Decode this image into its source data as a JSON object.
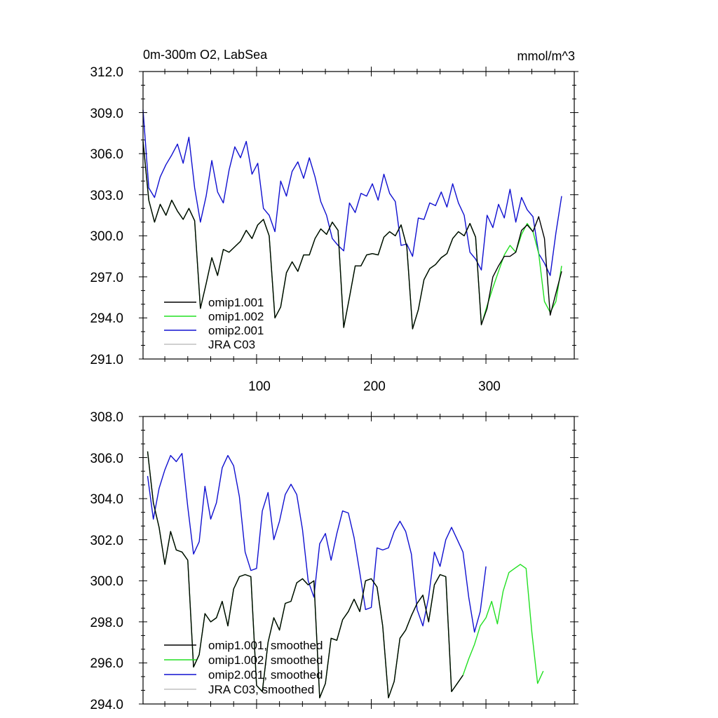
{
  "colors": {
    "omip1_001": "#000000",
    "omip1_002": "#22e022",
    "omip2_001": "#1010d0",
    "jra_c03": "#c0c0c0"
  },
  "chart_data": [
    {
      "type": "line",
      "title": "0m-300m O2, LabSea",
      "units": "mmol/m^3",
      "xlim": [
        1,
        377
      ],
      "ylim": [
        291,
        312
      ],
      "yticks": [
        "312.0",
        "309.0",
        "306.0",
        "303.0",
        "300.0",
        "297.0",
        "294.0",
        "291.0"
      ],
      "xticks": [
        "100",
        "200",
        "300"
      ],
      "legend_position": "bottom-left",
      "series": [
        {
          "name": "omip1.001",
          "color": "#000000",
          "x_start": 1,
          "x_step": 5,
          "values": [
            306.9,
            302.6,
            301.0,
            302.3,
            301.5,
            302.6,
            301.8,
            301.2,
            302.0,
            301.1,
            294.7,
            296.5,
            298.4,
            297.1,
            299.0,
            298.8,
            299.2,
            299.6,
            300.4,
            299.8,
            300.8,
            301.2,
            300.0,
            294.0,
            294.8,
            297.3,
            298.1,
            297.4,
            298.6,
            298.6,
            299.8,
            300.5,
            300.1,
            301.0,
            300.4,
            293.3,
            295.5,
            297.8,
            297.8,
            298.6,
            298.7,
            298.6,
            299.9,
            300.3,
            300.0,
            300.8,
            299.2,
            293.2,
            294.6,
            296.8,
            297.6,
            297.9,
            298.4,
            298.7,
            299.8,
            300.3,
            300.0,
            300.9,
            299.9,
            293.5,
            294.7,
            297.0,
            297.8,
            298.5,
            298.5,
            298.8,
            300.4,
            300.8,
            300.3,
            301.4,
            299.8,
            294.2,
            295.8,
            297.4
          ]
        },
        {
          "name": "omip1.002",
          "color": "#22e022",
          "x_start": 1,
          "x_step": 5,
          "values": [
            306.9,
            302.6,
            301.0,
            302.3,
            301.5,
            302.6,
            301.8,
            301.2,
            302.0,
            301.1,
            294.7,
            296.5,
            298.4,
            297.1,
            299.0,
            298.8,
            299.2,
            299.6,
            300.4,
            299.8,
            300.8,
            301.2,
            300.0,
            294.0,
            294.8,
            297.3,
            298.1,
            297.4,
            298.6,
            298.6,
            299.8,
            300.5,
            300.1,
            301.0,
            300.4,
            293.3,
            295.5,
            297.8,
            297.8,
            298.6,
            298.7,
            298.6,
            299.9,
            300.3,
            300.0,
            300.8,
            299.2,
            293.2,
            294.6,
            296.8,
            297.6,
            297.9,
            298.4,
            298.7,
            299.8,
            300.3,
            300.0,
            300.9,
            299.9,
            293.5,
            294.9,
            296.2,
            297.4,
            298.6,
            299.3,
            298.8,
            300.1,
            300.9,
            300.3,
            298.7,
            295.2,
            294.4,
            295.2,
            297.8
          ]
        },
        {
          "name": "omip2.001",
          "color": "#1010d0",
          "x_start": 1,
          "x_step": 5,
          "values": [
            309.2,
            303.5,
            302.8,
            304.3,
            305.2,
            305.9,
            306.7,
            305.3,
            307.2,
            303.5,
            301.0,
            302.9,
            305.5,
            303.2,
            302.4,
            304.8,
            306.5,
            305.7,
            306.9,
            304.5,
            305.3,
            302.0,
            301.5,
            300.3,
            304.0,
            302.9,
            304.7,
            305.4,
            304.2,
            305.7,
            304.3,
            302.5,
            301.5,
            299.8,
            299.3,
            298.9,
            302.4,
            301.7,
            303.1,
            302.9,
            303.8,
            302.6,
            304.5,
            303.1,
            302.5,
            299.3,
            299.4,
            298.5,
            301.3,
            301.2,
            302.4,
            302.2,
            303.2,
            302.1,
            303.8,
            302.4,
            301.5,
            298.8,
            298.3,
            297.5,
            301.5,
            300.6,
            302.3,
            301.3,
            303.4,
            301.0,
            302.8,
            301.9,
            301.4,
            298.7,
            298.0,
            297.1,
            300.2,
            302.9
          ]
        },
        {
          "name": "JRA C03",
          "color": "#c0c0c0",
          "values": []
        }
      ]
    },
    {
      "type": "line",
      "title": "",
      "ylim": [
        294,
        308
      ],
      "yticks": [
        "308.0",
        "306.0",
        "304.0",
        "302.0",
        "300.0",
        "298.0",
        "296.0",
        "294.0"
      ],
      "xlim": [
        1,
        377
      ],
      "legend_position": "bottom-left",
      "series": [
        {
          "name": "omip1.001, smoothed",
          "color": "#000000",
          "x_start": 5,
          "x_step": 5,
          "values": [
            306.3,
            303.8,
            302.6,
            300.8,
            302.4,
            301.5,
            301.4,
            301.0,
            295.8,
            296.4,
            298.4,
            298.0,
            298.2,
            299.0,
            297.8,
            299.6,
            300.2,
            300.3,
            300.2,
            294.9,
            294.6,
            297.0,
            298.2,
            297.6,
            298.9,
            299.0,
            299.9,
            300.1,
            299.8,
            300.0,
            294.3,
            295.0,
            297.2,
            297.1,
            298.1,
            298.5,
            299.1,
            298.5,
            300.0,
            300.1,
            299.7,
            297.8,
            294.3,
            295.1,
            297.2,
            297.6,
            298.3,
            298.9,
            299.3,
            298.0,
            299.8,
            300.3,
            300.2,
            294.6,
            295.0,
            295.4
          ]
        },
        {
          "name": "omip1.002, smoothed",
          "color": "#22e022",
          "x_start": 5,
          "x_step": 5,
          "values": [
            306.3,
            303.8,
            302.6,
            300.8,
            302.4,
            301.5,
            301.4,
            301.0,
            295.8,
            296.4,
            298.4,
            298.0,
            298.2,
            299.0,
            297.8,
            299.6,
            300.2,
            300.3,
            300.2,
            294.9,
            294.6,
            297.0,
            298.2,
            297.6,
            298.9,
            299.0,
            299.9,
            300.1,
            299.8,
            300.0,
            294.3,
            295.0,
            297.2,
            297.1,
            298.1,
            298.5,
            299.1,
            298.5,
            300.0,
            300.1,
            299.7,
            297.8,
            294.3,
            295.1,
            297.2,
            297.6,
            298.3,
            298.9,
            299.3,
            298.0,
            299.8,
            300.3,
            300.2,
            294.6,
            295.0,
            295.4,
            296.2,
            296.9,
            297.8,
            298.2,
            299.0,
            297.9,
            299.5,
            300.4,
            300.6,
            300.8,
            300.6,
            297.5,
            295.0,
            295.6
          ]
        },
        {
          "name": "omip2.001, smoothed",
          "color": "#1010d0",
          "x_start": 5,
          "x_step": 5,
          "values": [
            305.1,
            303.0,
            304.5,
            305.4,
            306.1,
            305.8,
            306.2,
            303.6,
            301.3,
            301.9,
            304.6,
            303.0,
            303.8,
            305.5,
            306.1,
            305.6,
            304.1,
            301.4,
            300.5,
            300.6,
            303.4,
            304.3,
            302.0,
            302.9,
            304.2,
            304.7,
            304.2,
            302.5,
            300.0,
            299.2,
            301.8,
            302.3,
            301.0,
            302.3,
            303.4,
            303.3,
            302.1,
            300.4,
            298.6,
            298.7,
            301.6,
            301.5,
            301.6,
            302.4,
            302.9,
            302.4,
            301.3,
            298.6,
            297.8,
            299.2,
            301.4,
            300.7,
            302.0,
            302.6,
            302.0,
            301.4,
            299.2,
            297.5,
            298.5,
            300.7
          ]
        },
        {
          "name": "JRA C03, smoothed",
          "color": "#c0c0c0",
          "values": []
        }
      ]
    }
  ]
}
